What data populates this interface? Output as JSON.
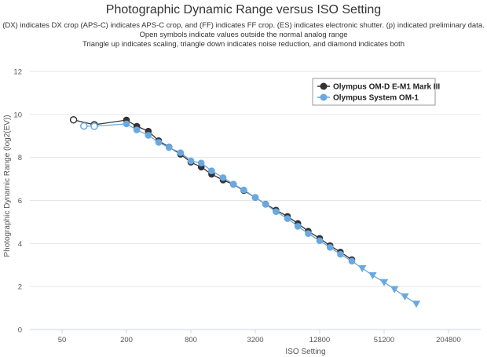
{
  "header": {
    "title": "Photographic Dynamic Range versus ISO Setting",
    "subtitle_lines": [
      "(DX) indicates DX crop (APS-C) indicates APS-C crop, and (FF) indicates FF crop. (ES) indicates electronic shutter. (p) indicated preliminary data.",
      "Open symbols indicate values outside the normal analog range",
      "Triangle up indicates scaling, triangle down indicates noise reduction, and diamond indicates both"
    ]
  },
  "chart_data": {
    "type": "line",
    "title": "Photographic Dynamic Range versus ISO Setting",
    "xlabel": "ISO Setting",
    "ylabel": "Photographic Dynamic Range (log2(EV))",
    "x_scale": "log2",
    "xlim": [
      25,
      409600
    ],
    "ylim": [
      0,
      12
    ],
    "x_ticks": [
      50,
      200,
      800,
      3200,
      12800,
      51200,
      204800
    ],
    "x_tick_labels": [
      "50",
      "200",
      "800",
      "3200",
      "12800",
      "51200",
      "204800"
    ],
    "y_ticks": [
      0,
      2,
      4,
      6,
      8,
      10,
      12
    ],
    "y_tick_labels": [
      "0",
      "2",
      "4",
      "6",
      "8",
      "10",
      "12"
    ],
    "grid": "horizontal",
    "legend_position": "top-right",
    "series": [
      {
        "name": "Olympus OM-D E-M1 Mark III",
        "color": "#333333",
        "points": [
          {
            "x": 64,
            "y": 9.75,
            "open": true,
            "marker": "circle"
          },
          {
            "x": 100,
            "y": 9.52,
            "open": true,
            "marker": "circle"
          },
          {
            "x": 200,
            "y": 9.74,
            "marker": "circle"
          },
          {
            "x": 250,
            "y": 9.45,
            "marker": "circle"
          },
          {
            "x": 320,
            "y": 9.22,
            "marker": "circle"
          },
          {
            "x": 400,
            "y": 8.78,
            "marker": "circle"
          },
          {
            "x": 500,
            "y": 8.48,
            "marker": "circle"
          },
          {
            "x": 640,
            "y": 8.15,
            "marker": "circle"
          },
          {
            "x": 800,
            "y": 7.78,
            "marker": "circle"
          },
          {
            "x": 1000,
            "y": 7.55,
            "marker": "circle"
          },
          {
            "x": 1250,
            "y": 7.22,
            "marker": "circle"
          },
          {
            "x": 1600,
            "y": 6.95,
            "marker": "circle"
          },
          {
            "x": 2000,
            "y": 6.75,
            "marker": "circle"
          },
          {
            "x": 2500,
            "y": 6.46,
            "marker": "circle"
          },
          {
            "x": 3200,
            "y": 6.14,
            "marker": "circle"
          },
          {
            "x": 4000,
            "y": 5.83,
            "marker": "circle"
          },
          {
            "x": 5000,
            "y": 5.55,
            "marker": "circle"
          },
          {
            "x": 6400,
            "y": 5.26,
            "marker": "circle"
          },
          {
            "x": 8000,
            "y": 4.93,
            "marker": "circle"
          },
          {
            "x": 10000,
            "y": 4.57,
            "marker": "circle"
          },
          {
            "x": 12800,
            "y": 4.24,
            "marker": "circle"
          },
          {
            "x": 16000,
            "y": 3.9,
            "marker": "circle"
          },
          {
            "x": 20000,
            "y": 3.6,
            "marker": "circle"
          },
          {
            "x": 25600,
            "y": 3.25,
            "marker": "circle"
          }
        ]
      },
      {
        "name": "Olympus System OM-1",
        "color": "#6aa8e0",
        "points": [
          {
            "x": 80,
            "y": 9.46,
            "open": true,
            "marker": "circle"
          },
          {
            "x": 100,
            "y": 9.45,
            "open": true,
            "marker": "circle"
          },
          {
            "x": 200,
            "y": 9.56,
            "marker": "circle"
          },
          {
            "x": 250,
            "y": 9.28,
            "marker": "circle"
          },
          {
            "x": 320,
            "y": 9.03,
            "marker": "circle"
          },
          {
            "x": 400,
            "y": 8.7,
            "marker": "circle"
          },
          {
            "x": 500,
            "y": 8.46,
            "marker": "circle"
          },
          {
            "x": 640,
            "y": 8.22,
            "marker": "circle"
          },
          {
            "x": 800,
            "y": 7.84,
            "marker": "circle"
          },
          {
            "x": 1000,
            "y": 7.74,
            "marker": "circle"
          },
          {
            "x": 1250,
            "y": 7.38,
            "marker": "circle"
          },
          {
            "x": 1600,
            "y": 7.06,
            "marker": "circle"
          },
          {
            "x": 2000,
            "y": 6.76,
            "marker": "circle"
          },
          {
            "x": 2500,
            "y": 6.49,
            "marker": "circle"
          },
          {
            "x": 3200,
            "y": 6.14,
            "marker": "circle"
          },
          {
            "x": 4000,
            "y": 5.82,
            "marker": "circle"
          },
          {
            "x": 5000,
            "y": 5.48,
            "marker": "circle"
          },
          {
            "x": 6400,
            "y": 5.16,
            "marker": "circle"
          },
          {
            "x": 8000,
            "y": 4.8,
            "marker": "circle"
          },
          {
            "x": 10000,
            "y": 4.46,
            "marker": "circle"
          },
          {
            "x": 12800,
            "y": 4.13,
            "marker": "circle"
          },
          {
            "x": 16000,
            "y": 3.82,
            "marker": "circle"
          },
          {
            "x": 20000,
            "y": 3.5,
            "marker": "circle"
          },
          {
            "x": 25600,
            "y": 3.18,
            "marker": "circle"
          },
          {
            "x": 32000,
            "y": 2.85,
            "marker": "triangle-down"
          },
          {
            "x": 40000,
            "y": 2.52,
            "marker": "triangle-down"
          },
          {
            "x": 51200,
            "y": 2.2,
            "marker": "triangle-down"
          },
          {
            "x": 64000,
            "y": 1.88,
            "marker": "triangle-down"
          },
          {
            "x": 80000,
            "y": 1.54,
            "marker": "triangle-down"
          },
          {
            "x": 102400,
            "y": 1.2,
            "marker": "triangle-down"
          }
        ]
      }
    ]
  }
}
